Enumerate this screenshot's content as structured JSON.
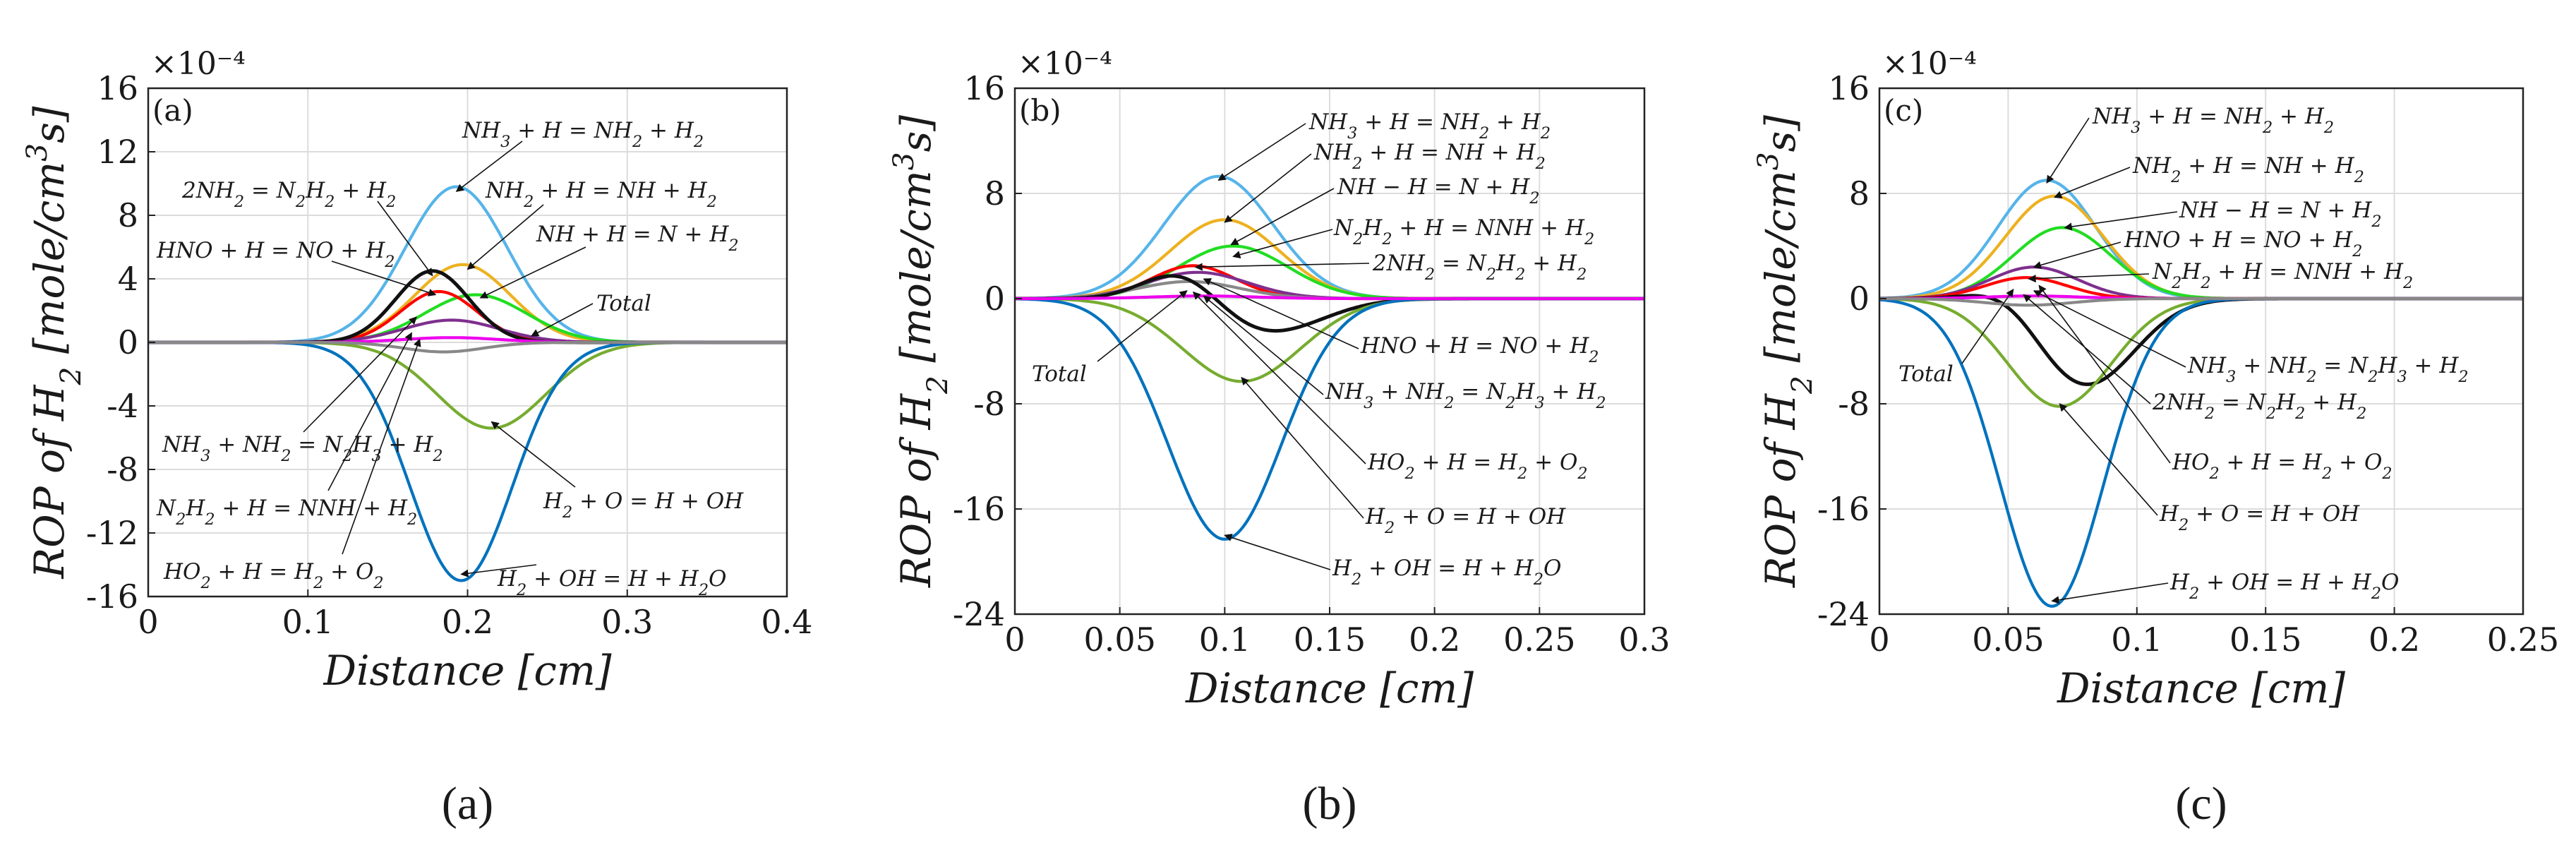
{
  "figure": {
    "panels": [
      "(a)",
      "(b)",
      "(c)"
    ],
    "captions": [
      "(a)",
      "(b)",
      "(c)"
    ]
  },
  "colors": {
    "r1": "#56b4e9",
    "r2": "#edb120",
    "r3": "#22dd22",
    "r4": "#ff0000",
    "r5": "#7e2f8e",
    "r6": "#111111",
    "r7": "#77ac30",
    "r8": "#0072bd",
    "r9": "#ee00ee",
    "r10": "#888888",
    "total": "#000000"
  },
  "chart_data": [
    {
      "type": "line",
      "panel_tag": "(a)",
      "caption": "(a)",
      "xlabel": "Distance [cm]",
      "ylabel": "ROP of H2 [mole/cm3s]",
      "y_multiplier": "×10⁻⁴",
      "xlim": [
        0,
        0.4
      ],
      "ylim": [
        -16,
        16
      ],
      "xticks": [
        0,
        0.1,
        0.2,
        0.3,
        0.4
      ],
      "xtick_labels": [
        "0",
        "0.1",
        "0.2",
        "0.3",
        "0.4"
      ],
      "yticks": [
        -16,
        -12,
        -8,
        -4,
        0,
        4,
        8,
        12,
        16
      ],
      "ytick_labels": [
        "-16",
        "-12",
        "-8",
        "-4",
        "0",
        "4",
        "8",
        "12",
        "16"
      ],
      "grid": true,
      "series": [
        {
          "name": "NH3 + H = NH2 + H2",
          "color_key": "r1",
          "peak_x": 0.193,
          "peak_y": 9.8,
          "width": 0.032
        },
        {
          "name": "NH2 + H = NH + H2",
          "color_key": "r2",
          "peak_x": 0.197,
          "peak_y": 4.9,
          "width": 0.03
        },
        {
          "name": "NH + H = N + H2",
          "color_key": "r3",
          "peak_x": 0.205,
          "peak_y": 3.0,
          "width": 0.032
        },
        {
          "name": "2NH2 = N2H2 + H2",
          "color_key": "r4",
          "peak_x": 0.182,
          "peak_y": 3.2,
          "width": 0.024
        },
        {
          "name": "HNO + H = NO + H2",
          "color_key": "r5",
          "peak_x": 0.19,
          "peak_y": 1.4,
          "width": 0.03
        },
        {
          "name": "Total",
          "color_key": "r6",
          "peak_x": 0.178,
          "peak_y": 4.5,
          "width": 0.023
        },
        {
          "name": "H2 + O = H + OH",
          "color_key": "r7",
          "peak_x": 0.215,
          "peak_y": -5.4,
          "width": 0.034
        },
        {
          "name": "H2 + OH = H + H2O",
          "color_key": "r8",
          "peak_x": 0.196,
          "peak_y": -15.0,
          "width": 0.032
        },
        {
          "name": "N2H2 + H = NNH + H2",
          "color_key": "r9",
          "peak_x": 0.19,
          "peak_y": 0.3,
          "width": 0.03
        },
        {
          "name": "NH3 + NH2 = N2H3 + H2",
          "color_key": "r10",
          "peak_x": 0.185,
          "peak_y": -0.6,
          "width": 0.025
        }
      ],
      "annotations": [
        "NH3 + H = NH2 + H2",
        "2NH2 = N2H2 + H2",
        "NH2 + H = NH + H2",
        "HNO + H = NO + H2",
        "NH + H = N + H2",
        "Total",
        "NH3 + NH2 = N2H3 + H2",
        "N2H2 + H = NNH + H2",
        "H2 + O = H + OH",
        "HO2 + H = H2 + O2",
        "H2 + OH = H + H2O"
      ]
    },
    {
      "type": "line",
      "panel_tag": "(b)",
      "caption": "(b)",
      "xlabel": "Distance [cm]",
      "ylabel": "ROP of H2 [mole/cm3s]",
      "y_multiplier": "×10⁻⁴",
      "xlim": [
        0,
        0.3
      ],
      "ylim": [
        -24,
        16
      ],
      "xticks": [
        0,
        0.05,
        0.1,
        0.15,
        0.2,
        0.25,
        0.3
      ],
      "xtick_labels": [
        "0",
        "0.05",
        "0.1",
        "0.15",
        "0.2",
        "0.25",
        "0.3"
      ],
      "yticks": [
        -24,
        -16,
        -8,
        0,
        8,
        16
      ],
      "ytick_labels": [
        "-24",
        "-16",
        "-8",
        "0",
        "8",
        "16"
      ],
      "grid": true,
      "series": [
        {
          "name": "NH3 + H = NH2 + H2",
          "color_key": "r1",
          "peak_x": 0.097,
          "peak_y": 9.3,
          "width": 0.026
        },
        {
          "name": "NH2 + H = NH + H2",
          "color_key": "r2",
          "peak_x": 0.1,
          "peak_y": 6.0,
          "width": 0.026
        },
        {
          "name": "NH + H = N + H2",
          "color_key": "r3",
          "peak_x": 0.104,
          "peak_y": 4.0,
          "width": 0.026
        },
        {
          "name": "2NH2 = N2H2 + H2",
          "color_key": "r4",
          "peak_x": 0.085,
          "peak_y": 2.5,
          "width": 0.02
        },
        {
          "name": "N2H2 + H = NNH + H2",
          "color_key": "r5",
          "peak_x": 0.087,
          "peak_y": 2.0,
          "width": 0.024
        },
        {
          "name": "HNO + H = NO + H2",
          "color_key": "r10",
          "peak_x": 0.083,
          "peak_y": 1.3,
          "width": 0.024
        },
        {
          "name": "Total",
          "color_key": "r6",
          "peak_x": 0.08,
          "peak_y": 2.4,
          "width": 0.018,
          "trough_x": 0.12,
          "trough_y": -2.6,
          "trough_width": 0.026
        },
        {
          "name": "H2 + O = H + OH",
          "color_key": "r7",
          "peak_x": 0.108,
          "peak_y": -6.3,
          "width": 0.028
        },
        {
          "name": "H2 + OH = H + H2O",
          "color_key": "r8",
          "peak_x": 0.1,
          "peak_y": -18.3,
          "width": 0.027
        },
        {
          "name": "NH3 + NH2 = N2H3 + H2",
          "color_key": "r9",
          "peak_x": 0.09,
          "peak_y": 0.2,
          "width": 0.025
        }
      ],
      "annotations": [
        "NH3 + H = NH2 + H2",
        "NH2 + H = NH + H2",
        "NH − H = N + H2",
        "N2H2 + H = NNH + H2",
        "2NH2 = N2H2 + H2",
        "Total",
        "HNO + H = NO + H2",
        "NH3 + NH2 = N2H3 + H2",
        "HO2 + H = H2 + O2",
        "H2 + O = H + OH",
        "H2 + OH = H + H2O"
      ]
    },
    {
      "type": "line",
      "panel_tag": "(c)",
      "caption": "(c)",
      "xlabel": "Distance [cm]",
      "ylabel": "ROP of H2 [mole/cm3s]",
      "y_multiplier": "×10⁻⁴",
      "xlim": [
        0,
        0.25
      ],
      "ylim": [
        -24,
        16
      ],
      "xticks": [
        0,
        0.05,
        0.1,
        0.15,
        0.2,
        0.25
      ],
      "xtick_labels": [
        "0",
        "0.05",
        "0.1",
        "0.15",
        "0.2",
        "0.25"
      ],
      "yticks": [
        -24,
        -16,
        -8,
        0,
        8,
        16
      ],
      "ytick_labels": [
        "-24",
        "-16",
        "-8",
        "0",
        "8",
        "16"
      ],
      "grid": true,
      "series": [
        {
          "name": "NH3 + H = NH2 + H2",
          "color_key": "r1",
          "peak_x": 0.065,
          "peak_y": 9.0,
          "width": 0.019
        },
        {
          "name": "NH2 + H = NH + H2",
          "color_key": "r2",
          "peak_x": 0.068,
          "peak_y": 7.8,
          "width": 0.019
        },
        {
          "name": "NH + H = N + H2",
          "color_key": "r3",
          "peak_x": 0.071,
          "peak_y": 5.4,
          "width": 0.019
        },
        {
          "name": "HNO + H = NO + H2",
          "color_key": "r5",
          "peak_x": 0.06,
          "peak_y": 2.4,
          "width": 0.017
        },
        {
          "name": "N2H2 + H = NNH + H2",
          "color_key": "r4",
          "peak_x": 0.057,
          "peak_y": 1.6,
          "width": 0.016
        },
        {
          "name": "Total",
          "color_key": "r6",
          "peak_x": 0.05,
          "peak_y": 1.2,
          "width": 0.013,
          "trough_x": 0.08,
          "trough_y": -6.6,
          "trough_width": 0.019
        },
        {
          "name": "H2 + O = H + OH",
          "color_key": "r7",
          "peak_x": 0.07,
          "peak_y": -8.2,
          "width": 0.02
        },
        {
          "name": "H2 + OH = H + H2O",
          "color_key": "r8",
          "peak_x": 0.067,
          "peak_y": -23.4,
          "width": 0.02
        },
        {
          "name": "2NH2 = N2H2 + H2",
          "color_key": "r9",
          "peak_x": 0.06,
          "peak_y": 0.2,
          "width": 0.018
        },
        {
          "name": "NH3 + NH2 = N2H3 + H2",
          "color_key": "r10",
          "peak_x": 0.058,
          "peak_y": -0.5,
          "width": 0.017
        }
      ],
      "annotations": [
        "NH3 + H = NH2 + H2",
        "NH2 + H = NH + H2",
        "NH − H = N + H2",
        "HNO + H = NO + H2",
        "N2H2 + H = NNH + H2",
        "Total",
        "NH3 + NH2 = N2H3 + H2",
        "2NH2 = N2H2 + H2",
        "HO2 + H = H2 + O2",
        "H2 + O = H + OH",
        "H2 + OH = H + H2O"
      ]
    }
  ]
}
